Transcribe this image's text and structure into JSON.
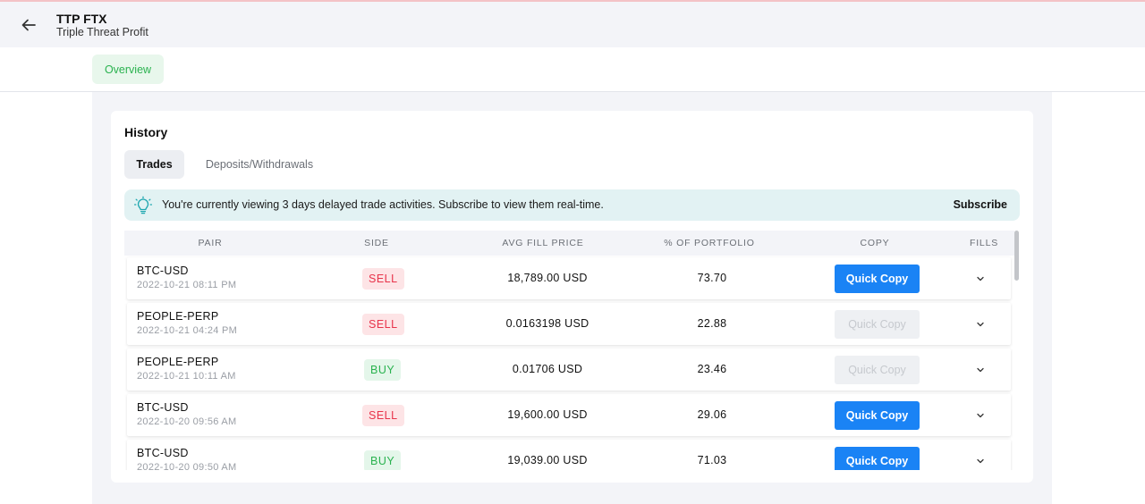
{
  "header": {
    "title": "TTP FTX",
    "subtitle": "Triple Threat Profit"
  },
  "nav": {
    "overview_tab": "Overview"
  },
  "history": {
    "title": "History",
    "tabs": [
      "Trades",
      "Deposits/Withdrawals"
    ],
    "active_tab": "Trades",
    "banner": {
      "text": "You're currently viewing 3 days delayed trade activities. Subscribe to view them real-time.",
      "action": "Subscribe"
    },
    "columns": [
      "PAIR",
      "SIDE",
      "AVG FILL PRICE",
      "% OF PORTFOLIO",
      "COPY",
      "FILLS"
    ],
    "rows": [
      {
        "pair": "BTC-USD",
        "date": "2022-10-21 08:11 PM",
        "side": "SELL",
        "price": "18,789.00 USD",
        "pct": "73.70",
        "copy": "Quick Copy",
        "copy_enabled": true
      },
      {
        "pair": "PEOPLE-PERP",
        "date": "2022-10-21 04:24 PM",
        "side": "SELL",
        "price": "0.0163198 USD",
        "pct": "22.88",
        "copy": "Quick Copy",
        "copy_enabled": false
      },
      {
        "pair": "PEOPLE-PERP",
        "date": "2022-10-21 10:11 AM",
        "side": "BUY",
        "price": "0.01706 USD",
        "pct": "23.46",
        "copy": "Quick Copy",
        "copy_enabled": false
      },
      {
        "pair": "BTC-USD",
        "date": "2022-10-20 09:56 AM",
        "side": "SELL",
        "price": "19,600.00 USD",
        "pct": "29.06",
        "copy": "Quick Copy",
        "copy_enabled": true
      },
      {
        "pair": "BTC-USD",
        "date": "2022-10-20 09:50 AM",
        "side": "BUY",
        "price": "19,039.00 USD",
        "pct": "71.03",
        "copy": "Quick Copy",
        "copy_enabled": true
      }
    ]
  },
  "colors": {
    "accent": "#1a83f5",
    "sell": "#e8334a",
    "buy": "#2ab24f",
    "banner_bg": "#e2f2f3"
  },
  "icons": {
    "back": "arrow-left-icon",
    "banner": "lightbulb-icon",
    "fills": "chevron-down-icon"
  }
}
